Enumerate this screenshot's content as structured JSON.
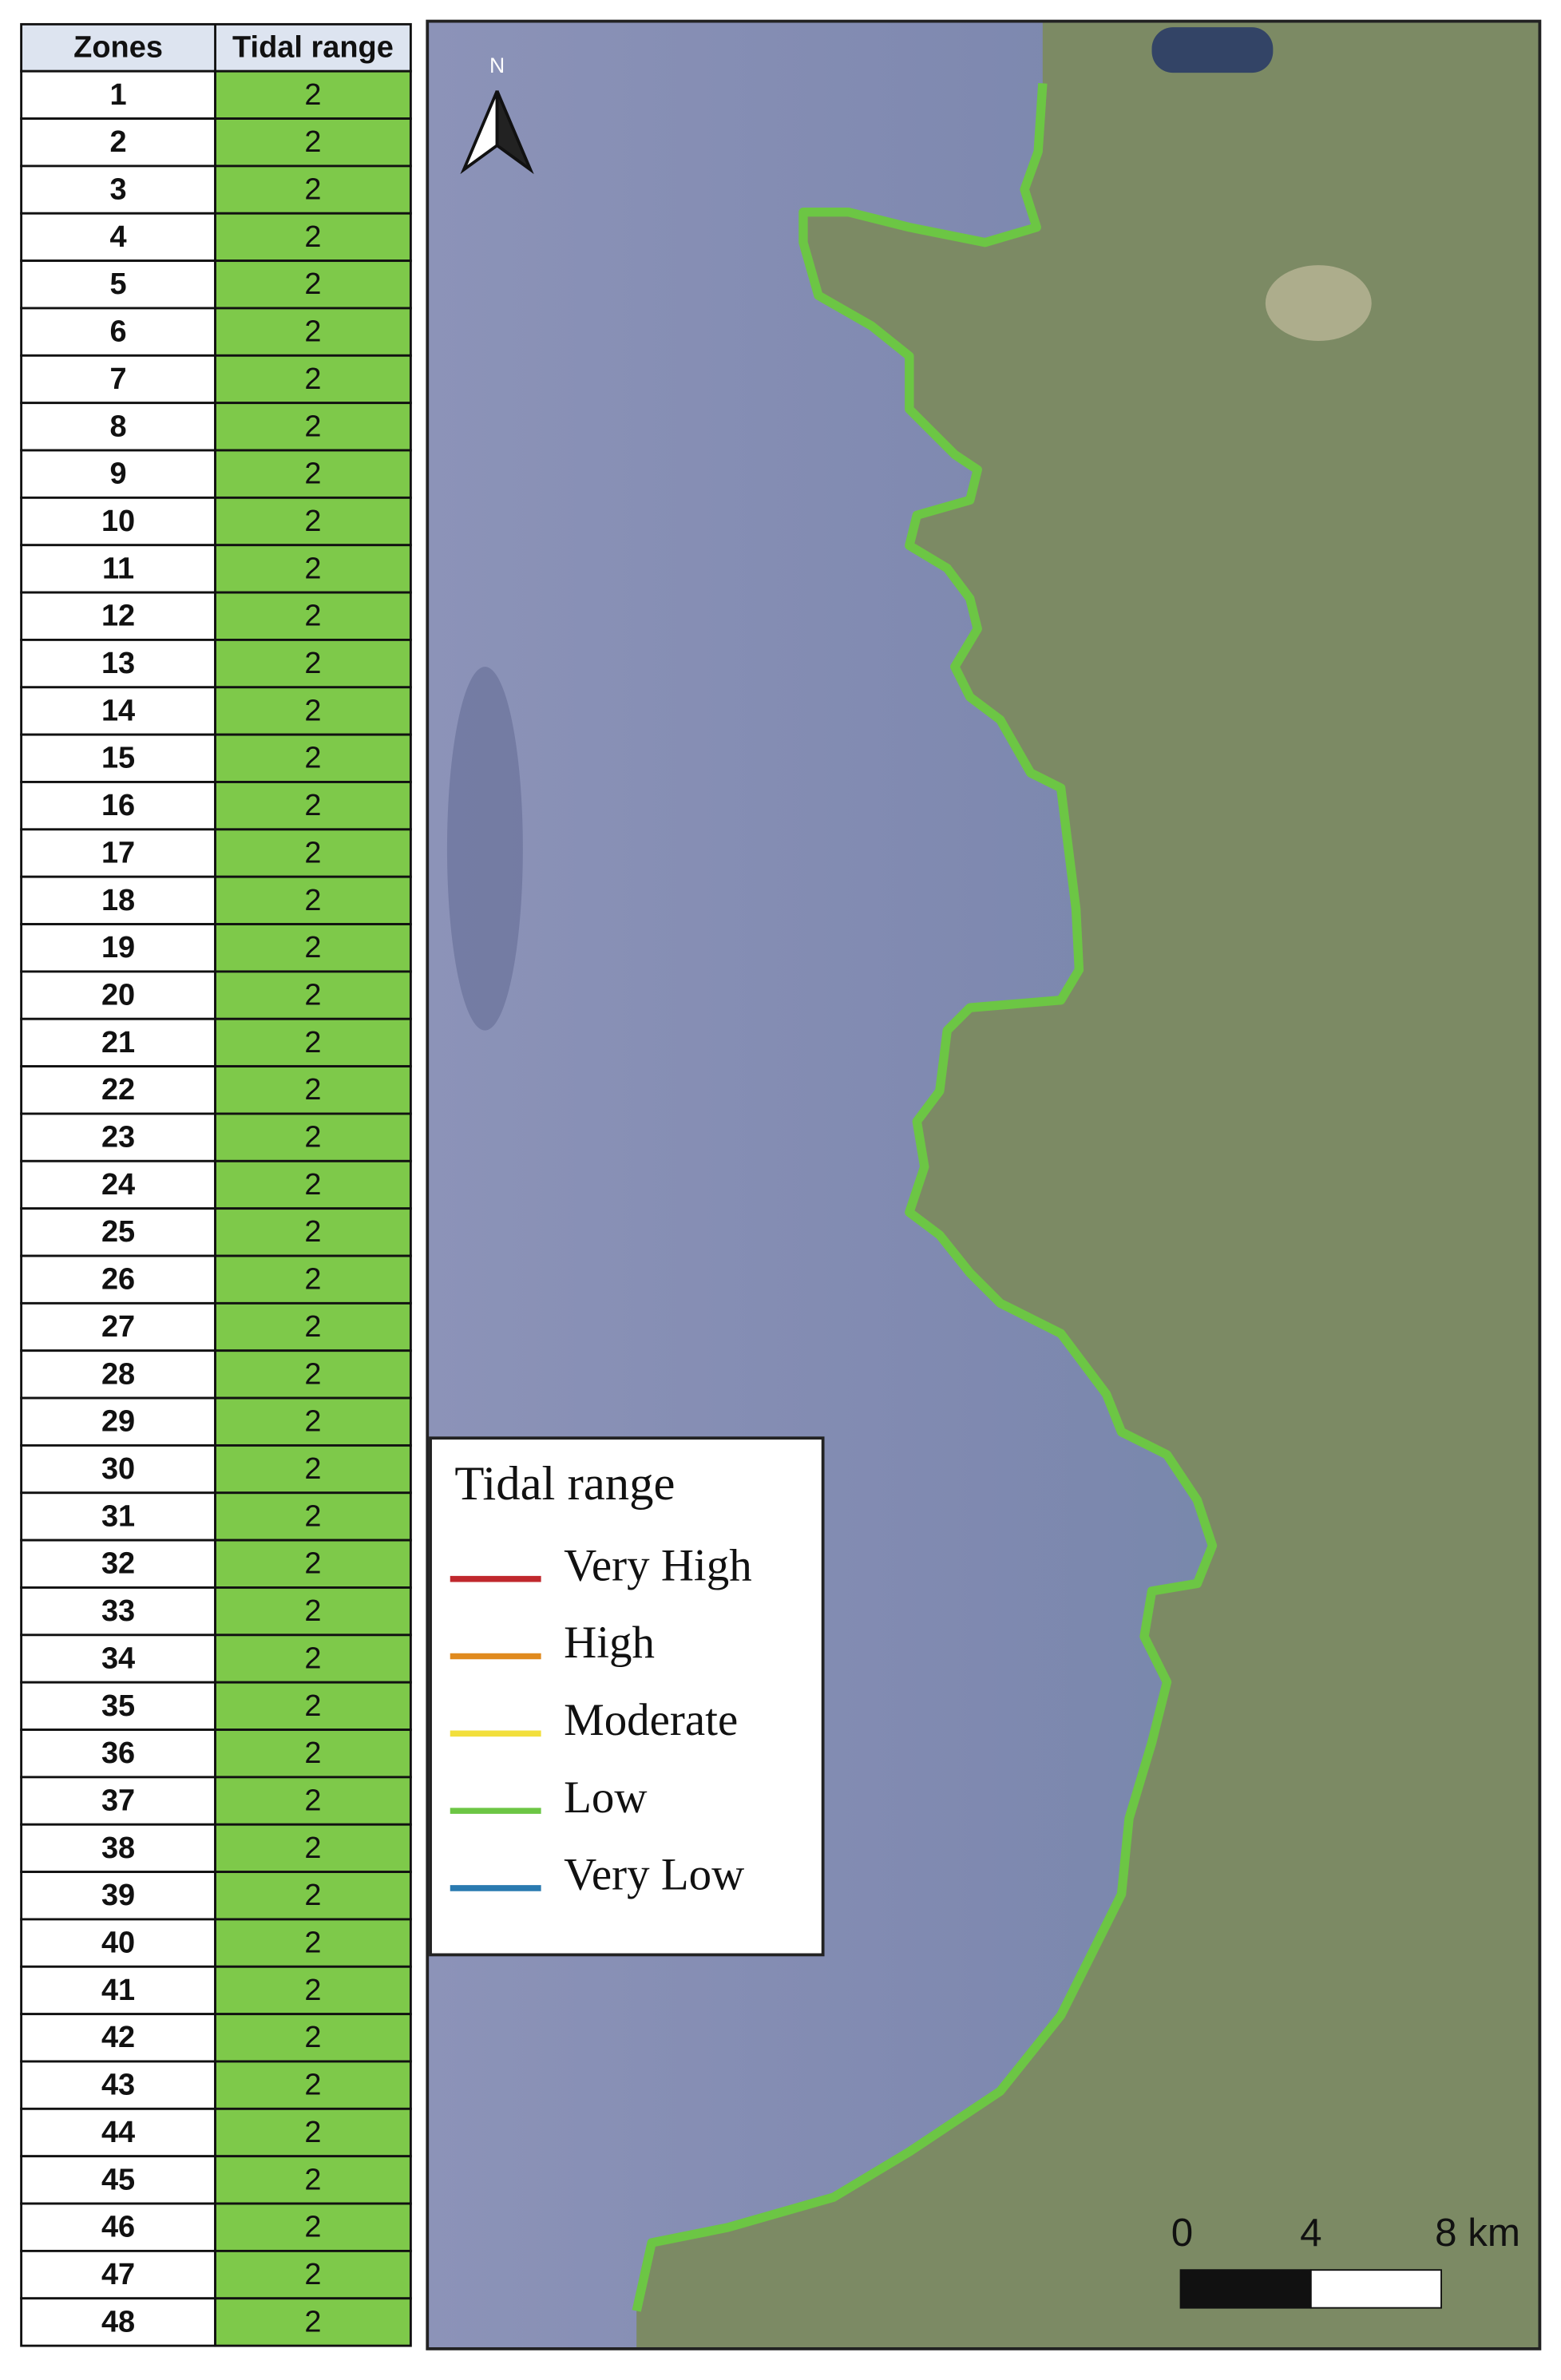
{
  "table": {
    "header": [
      "Zones",
      "Tidal range"
    ],
    "rows": [
      [
        1,
        2
      ],
      [
        2,
        2
      ],
      [
        3,
        2
      ],
      [
        4,
        2
      ],
      [
        5,
        2
      ],
      [
        6,
        2
      ],
      [
        7,
        2
      ],
      [
        8,
        2
      ],
      [
        9,
        2
      ],
      [
        10,
        2
      ],
      [
        11,
        2
      ],
      [
        12,
        2
      ],
      [
        13,
        2
      ],
      [
        14,
        2
      ],
      [
        15,
        2
      ],
      [
        16,
        2
      ],
      [
        17,
        2
      ],
      [
        18,
        2
      ],
      [
        19,
        2
      ],
      [
        20,
        2
      ],
      [
        21,
        2
      ],
      [
        22,
        2
      ],
      [
        23,
        2
      ],
      [
        24,
        2
      ],
      [
        25,
        2
      ],
      [
        26,
        2
      ],
      [
        27,
        2
      ],
      [
        28,
        2
      ],
      [
        29,
        2
      ],
      [
        30,
        2
      ],
      [
        31,
        2
      ],
      [
        32,
        2
      ],
      [
        33,
        2
      ],
      [
        34,
        2
      ],
      [
        35,
        2
      ],
      [
        36,
        2
      ],
      [
        37,
        2
      ],
      [
        38,
        2
      ],
      [
        39,
        2
      ],
      [
        40,
        2
      ],
      [
        41,
        2
      ],
      [
        42,
        2
      ],
      [
        43,
        2
      ],
      [
        44,
        2
      ],
      [
        45,
        2
      ],
      [
        46,
        2
      ],
      [
        47,
        2
      ],
      [
        48,
        2
      ]
    ]
  },
  "map": {
    "north_label": "N",
    "legend": {
      "title": "Tidal range",
      "items": [
        {
          "label": "Very High",
          "color": "#c0282d"
        },
        {
          "label": "High",
          "color": "#e08a1e"
        },
        {
          "label": "Moderate",
          "color": "#f2df3c"
        },
        {
          "label": "Low",
          "color": "#6cc644"
        },
        {
          "label": "Very Low",
          "color": "#2a7ab0"
        }
      ]
    },
    "scale_labels": [
      "0",
      "4",
      "8 km"
    ]
  }
}
